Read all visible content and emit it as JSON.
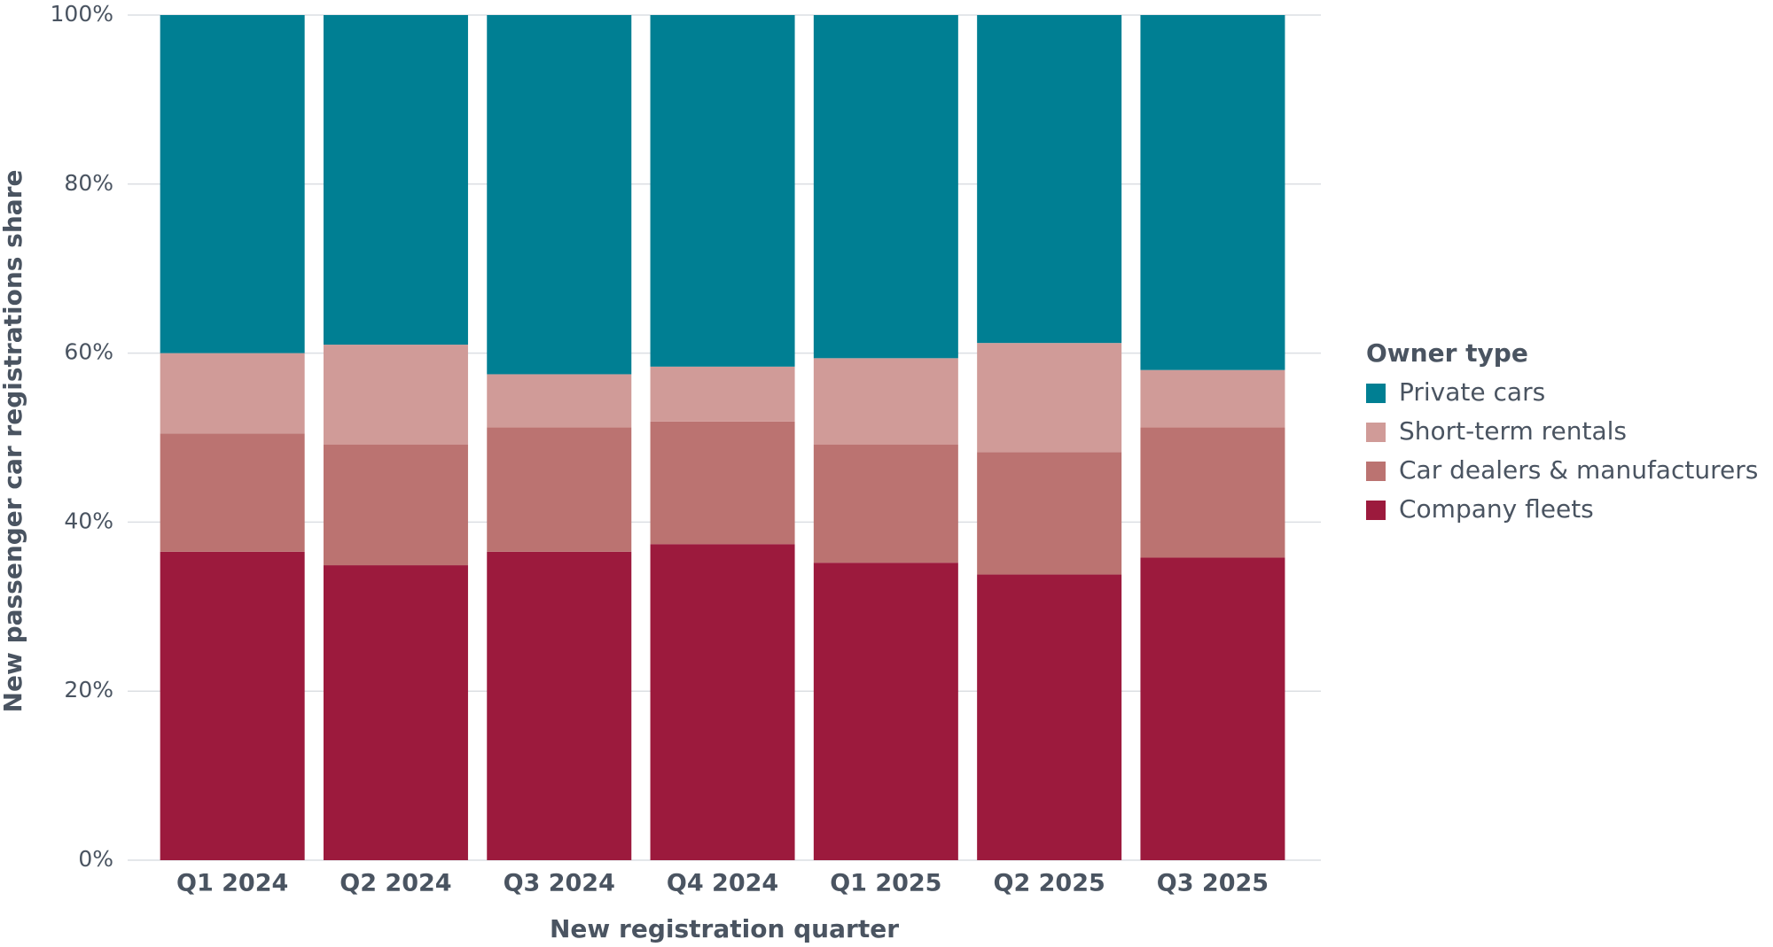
{
  "chart_data": {
    "type": "stacked_bar",
    "x_label": "New registration quarter",
    "y_label": "New passenger car registrations share",
    "legend_title": "Owner type",
    "legend_position": "right",
    "categories": [
      "Q1 2024",
      "Q2 2024",
      "Q3 2024",
      "Q4 2024",
      "Q1 2025",
      "Q2 2025",
      "Q3 2025"
    ],
    "series": [
      {
        "name": "Private cars",
        "color": "#007f93",
        "values": [
          40.0,
          39.0,
          42.5,
          41.6,
          40.6,
          38.8,
          42.0
        ]
      },
      {
        "name": "Short-term rentals",
        "color": "#d09b98",
        "values": [
          9.5,
          11.8,
          6.3,
          6.5,
          10.2,
          12.9,
          6.8
        ]
      },
      {
        "name": "Car dealers & manufacturers",
        "color": "#bb7371",
        "values": [
          14.0,
          14.3,
          14.7,
          14.5,
          14.0,
          14.5,
          15.4
        ]
      },
      {
        "name": "Company fleets",
        "color": "#9c1a3d",
        "values": [
          36.5,
          34.9,
          36.5,
          37.4,
          35.2,
          33.8,
          35.8
        ]
      }
    ],
    "ylim": [
      0,
      100
    ],
    "yticks": [
      {
        "value": 0,
        "label": "0%"
      },
      {
        "value": 20,
        "label": "20%"
      },
      {
        "value": 40,
        "label": "40%"
      },
      {
        "value": 60,
        "label": "60%"
      },
      {
        "value": 80,
        "label": "80%"
      },
      {
        "value": 100,
        "label": "100%"
      }
    ],
    "grid": true
  }
}
